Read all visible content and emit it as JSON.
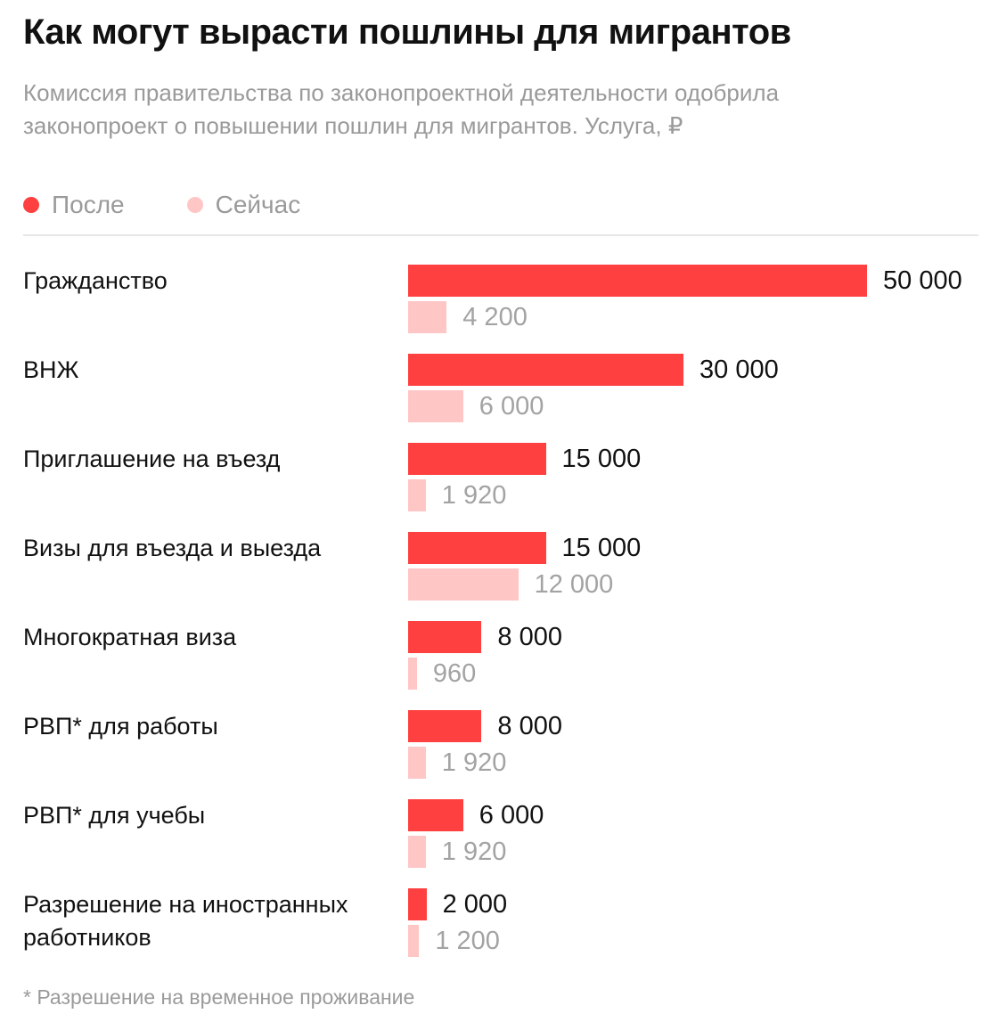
{
  "title": "Как могут вырасти пошлины для мигрантов",
  "subtitle": "Комиссия правительства по законопроектной деятельности одобрила законопроект о повышении пошлин для мигрантов. Услуга, ₽",
  "legend": {
    "after": "После",
    "before": "Сейчас"
  },
  "colors": {
    "after": "#ff4040",
    "before": "#ffc6c6"
  },
  "footnote": "* Разрешение на временное проживание",
  "chart_data": {
    "type": "bar",
    "orientation": "horizontal",
    "categories": [
      "Гражданство",
      "ВНЖ",
      "Приглашение на въезд",
      "Визы для въезда и выезда",
      "Многократная виза",
      "РВП* для работы",
      "РВП* для учебы",
      "Разрешение на иностранных работников"
    ],
    "series": [
      {
        "name": "После",
        "values": [
          50000,
          30000,
          15000,
          15000,
          8000,
          8000,
          6000,
          2000
        ],
        "labels": [
          "50 000",
          "30 000",
          "15 000",
          "15 000",
          "8 000",
          "8 000",
          "6 000",
          "2 000"
        ]
      },
      {
        "name": "Сейчас",
        "values": [
          4200,
          6000,
          1920,
          12000,
          960,
          1920,
          1920,
          1200
        ],
        "labels": [
          "4 200",
          "6 000",
          "1 920",
          "12 000",
          "960",
          "1 920",
          "1 920",
          "1 200"
        ]
      }
    ],
    "xlim": [
      0,
      50000
    ],
    "legend_position": "top-left",
    "grid": false
  }
}
